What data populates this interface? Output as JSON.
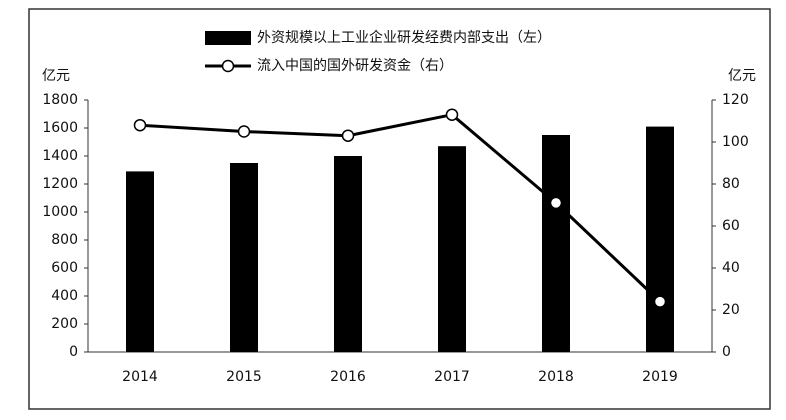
{
  "chart_data": {
    "type": "bar",
    "y_label": "亿元",
    "y2_label": "亿元",
    "categories": [
      "2014",
      "2015",
      "2016",
      "2017",
      "2018",
      "2019"
    ],
    "series": [
      {
        "name": "外资规模以上工业企业研发经费内部支出（左）",
        "type": "bar",
        "color": "#000000",
        "values": [
          1290,
          1350,
          1400,
          1470,
          1550,
          1610
        ]
      },
      {
        "name": "流入中国的国外研发资金（右）",
        "type": "line",
        "axis": "y2",
        "color": "#000000",
        "values": [
          108,
          105,
          103,
          113,
          71,
          24
        ]
      }
    ],
    "ylim": [
      0,
      1800
    ],
    "yticks": [
      0,
      200,
      400,
      600,
      800,
      1000,
      1200,
      1400,
      1600,
      1800
    ],
    "y2lim": [
      0,
      120
    ],
    "y2ticks": [
      0,
      20,
      40,
      60,
      80,
      100,
      120
    ],
    "grid": false
  }
}
